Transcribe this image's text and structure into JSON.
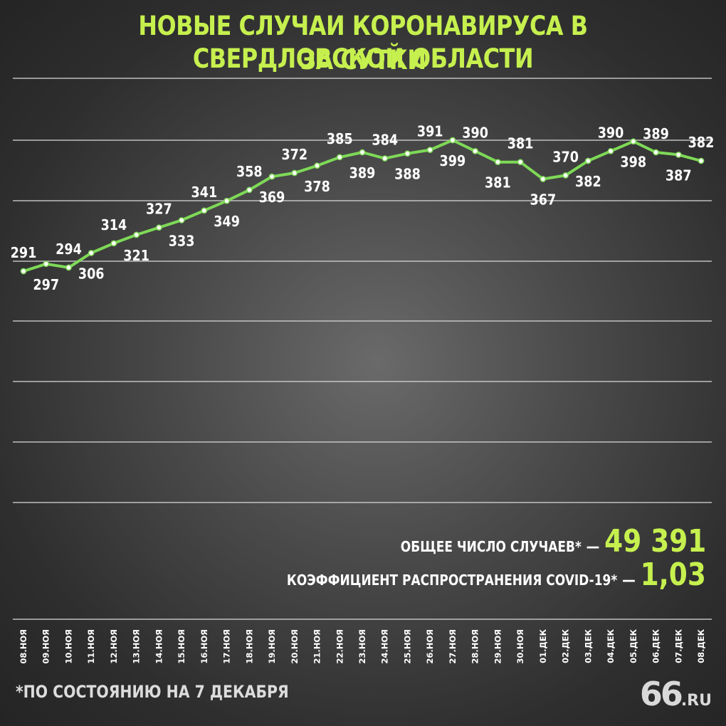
{
  "title": {
    "line1": "НОВЫЕ СЛУЧАИ КОРОНАВИРУСА В СВЕРДЛОВСКОЙ ОБЛАСТИ",
    "line2": "ЗА СУТКИ"
  },
  "stats": {
    "total_label": "ОБЩЕЕ ЧИСЛО СЛУЧАЕВ*",
    "total_dash": "—",
    "total_value": "49 391",
    "r_label": "КОЭФФИЦИЕНТ РАСПРОСТРАНЕНИЯ COVID-19*",
    "r_dash": "—",
    "r_value": "1,03"
  },
  "footnote": "*ПО СОСТОЯНИЮ НА 7 ДЕКАБРЯ",
  "logo": {
    "number": "66",
    "domain": ".RU"
  },
  "colors": {
    "accent": "#c6f04e",
    "line": "#7ed957",
    "text": "#ffffff",
    "grid": "#d8d8d8"
  },
  "chart_data": {
    "type": "line",
    "title": "НОВЫЕ СЛУЧАИ КОРОНАВИРУСА В СВЕРДЛОВСКОЙ ОБЛАСТИ ЗА СУТКИ",
    "x": [
      "08.НОЯ",
      "09.НОЯ",
      "10.НОЯ",
      "11.НОЯ",
      "12.НОЯ",
      "13.НОЯ",
      "14.НОЯ",
      "15.НОЯ",
      "16.НОЯ",
      "17.НОЯ",
      "18.НОЯ",
      "19.НОЯ",
      "20.НОЯ",
      "21.НОЯ",
      "22.НОЯ",
      "23.НОЯ",
      "24.НОЯ",
      "25.НОЯ",
      "26.НОЯ",
      "27.НОЯ",
      "28.НОЯ",
      "29.НОЯ",
      "30.НОЯ",
      "01.ДЕК",
      "02.ДЕК",
      "03.ДЕК",
      "04.ДЕК",
      "05.ДЕК",
      "06.ДЕК",
      "07.ДЕК",
      "08.ДЕК"
    ],
    "series": [
      {
        "values": [
          291,
          297,
          294,
          306,
          314,
          321,
          327,
          333,
          341,
          349,
          358,
          369,
          372,
          378,
          385,
          389,
          384,
          388,
          391,
          399,
          390,
          381,
          381,
          367,
          370,
          382,
          390,
          398,
          389,
          387,
          382
        ]
      }
    ],
    "label_positions": [
      "above",
      "below",
      "above",
      "below",
      "above",
      "below",
      "above",
      "below",
      "above",
      "below",
      "above",
      "below",
      "above",
      "below",
      "above",
      "below",
      "above",
      "below",
      "above",
      "below",
      "above",
      "below",
      "above",
      "below",
      "above",
      "below",
      "above",
      "below",
      "above",
      "below",
      "above"
    ],
    "grid": true,
    "legend": "none"
  }
}
